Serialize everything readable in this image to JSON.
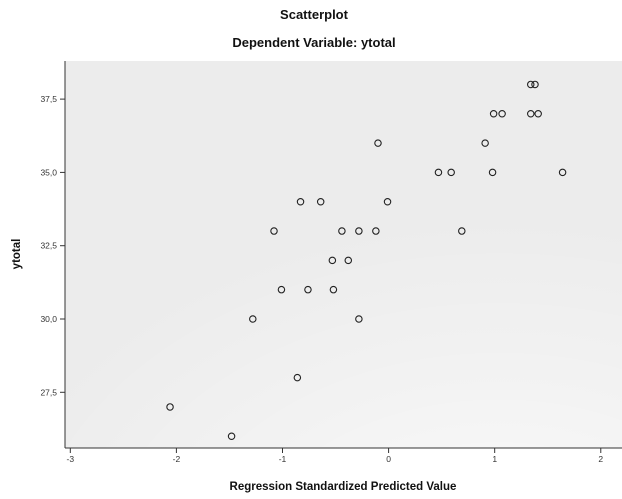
{
  "chart_data": {
    "type": "scatter",
    "title": "Scatterplot",
    "subtitle": "Dependent Variable: ytotal",
    "xlabel": "Regression Standardized Predicted Value",
    "ylabel": "ytotal",
    "xlim": [
      -3.05,
      2.2
    ],
    "ylim": [
      25.6,
      38.8
    ],
    "xticks": [
      -3,
      -2,
      -1,
      0,
      1,
      2
    ],
    "xtick_labels": [
      "-3",
      "-2",
      "-1",
      "0",
      "1",
      "2"
    ],
    "yticks": [
      27.5,
      30.0,
      32.5,
      35.0,
      37.5
    ],
    "ytick_labels": [
      "27,5",
      "30,0",
      "32,5",
      "35,0",
      "37,5"
    ],
    "grid": false,
    "marker": "hollow-circle",
    "colors": {
      "plot_background": "#ececec",
      "marker_stroke": "#222222",
      "axis": "#333333"
    },
    "points": [
      {
        "x": -2.06,
        "y": 27
      },
      {
        "x": -1.48,
        "y": 26
      },
      {
        "x": -1.28,
        "y": 30
      },
      {
        "x": -1.08,
        "y": 33
      },
      {
        "x": -1.01,
        "y": 31
      },
      {
        "x": -0.86,
        "y": 28
      },
      {
        "x": -0.83,
        "y": 34
      },
      {
        "x": -0.76,
        "y": 31
      },
      {
        "x": -0.64,
        "y": 34
      },
      {
        "x": -0.53,
        "y": 32
      },
      {
        "x": -0.52,
        "y": 31
      },
      {
        "x": -0.44,
        "y": 33
      },
      {
        "x": -0.38,
        "y": 32
      },
      {
        "x": -0.28,
        "y": 33
      },
      {
        "x": -0.28,
        "y": 30
      },
      {
        "x": -0.12,
        "y": 33
      },
      {
        "x": -0.1,
        "y": 36
      },
      {
        "x": -0.01,
        "y": 34
      },
      {
        "x": 0.47,
        "y": 35
      },
      {
        "x": 0.59,
        "y": 35
      },
      {
        "x": 0.69,
        "y": 33
      },
      {
        "x": 0.91,
        "y": 36
      },
      {
        "x": 0.98,
        "y": 35
      },
      {
        "x": 0.99,
        "y": 37
      },
      {
        "x": 1.07,
        "y": 37
      },
      {
        "x": 1.34,
        "y": 38
      },
      {
        "x": 1.38,
        "y": 38
      },
      {
        "x": 1.34,
        "y": 37
      },
      {
        "x": 1.41,
        "y": 37
      },
      {
        "x": 1.64,
        "y": 35
      }
    ]
  }
}
